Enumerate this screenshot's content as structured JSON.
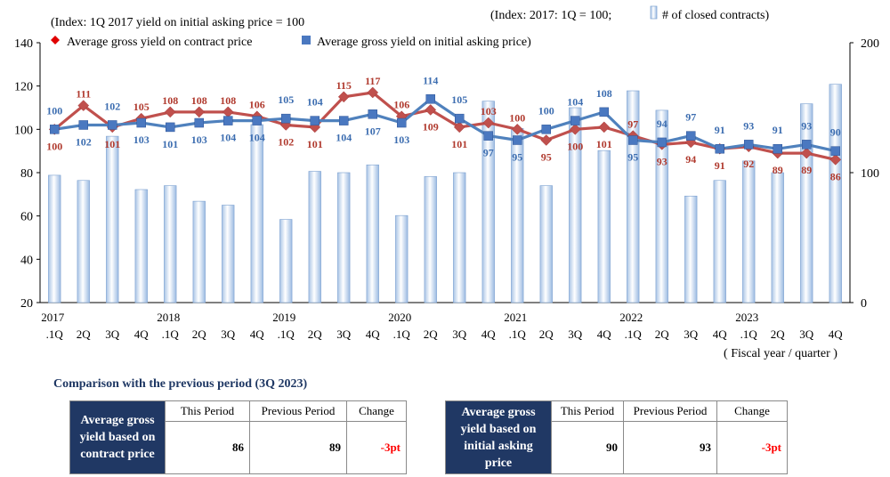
{
  "chart_data": {
    "type": "bar+line",
    "title_left": "(Index: 1Q 2017 yield on initial asking price = 100",
    "title_right_prefix": "(Index: 2017: 1Q = 100;",
    "title_right_suffix": "# of closed contracts)",
    "legend_line1": "Average gross yield on contract price",
    "legend_line2": "Average gross yield on initial asking price)",
    "xlabel": "( Fiscal year / quarter )",
    "y_left": {
      "min": 20,
      "max": 140,
      "ticks": [
        "20",
        "40",
        "60",
        "80",
        "100",
        "120",
        "140"
      ]
    },
    "y_right": {
      "min": 0,
      "max": 200,
      "ticks": [
        "0",
        "100",
        "200"
      ]
    },
    "years": [
      "2017",
      "2018",
      "2019",
      "2020",
      "2021",
      "2022",
      "2023"
    ],
    "quarters": [
      ".1Q",
      "2Q",
      "3Q",
      "4Q",
      ".1Q",
      "2Q",
      "3Q",
      "4Q",
      ".1Q",
      "2Q",
      "3Q",
      "4Q",
      ".1Q",
      "2Q",
      "3Q",
      "4Q",
      ".1Q",
      "2Q",
      "3Q",
      "4Q",
      ".1Q",
      "2Q",
      "3Q",
      "4Q",
      ".1Q",
      "2Q",
      "3Q",
      "4Q"
    ],
    "series": [
      {
        "name": "# of closed contracts",
        "axis": "right",
        "type": "bar",
        "values": [
          98,
          94,
          128,
          87,
          90,
          78,
          75,
          137,
          64,
          101,
          100,
          106,
          67,
          97,
          100,
          155,
          134,
          90,
          150,
          117,
          163,
          148,
          82,
          94,
          109,
          100,
          153,
          168
        ]
      },
      {
        "name": "Average gross yield on contract price",
        "axis": "left",
        "type": "line",
        "color": "#c0504d",
        "values": [
          100,
          111,
          101,
          105,
          108,
          108,
          108,
          106,
          102,
          101,
          115,
          117,
          106,
          109,
          101,
          103,
          100,
          95,
          100,
          101,
          97,
          93,
          94,
          91,
          92,
          89,
          89,
          86
        ]
      },
      {
        "name": "Average gross yield on initial asking price",
        "axis": "left",
        "type": "line",
        "color": "#4f81bd",
        "values": [
          100,
          102,
          102,
          103,
          101,
          103,
          104,
          104,
          105,
          104,
          104,
          107,
          103,
          114,
          105,
          97,
          95,
          100,
          104,
          108,
          95,
          94,
          97,
          91,
          93,
          91,
          93,
          90
        ]
      }
    ]
  },
  "comparison": {
    "title": "Comparison with the previous period (3Q 2023)",
    "headers": [
      "This Period",
      "Previous Period",
      "Change"
    ],
    "contract": {
      "label": "Average gross yield based on contract price",
      "this": "86",
      "prev": "89",
      "change": "-3pt"
    },
    "asking": {
      "label": "Average gross yield based on initial asking price",
      "this": "90",
      "prev": "93",
      "change": "-3pt"
    }
  }
}
